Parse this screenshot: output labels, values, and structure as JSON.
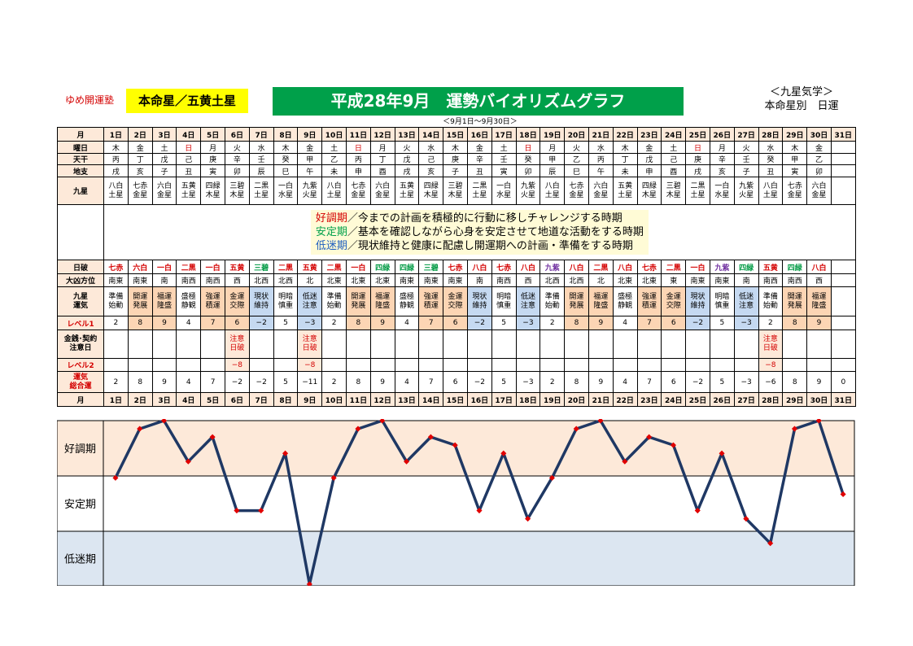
{
  "header": {
    "school": "ゆめ開運塾",
    "honmei": "本命星／五黄土星",
    "title": "平成28年9月　運勢バイオリズムグラフ",
    "kyusei_line1": "＜九星気学＞",
    "kyusei_line2": "本命星別　日運",
    "period": "＜9月1日～9月30日＞"
  },
  "labels": {
    "month": "月",
    "weekday": "曜日",
    "tenkan": "天干",
    "chishi": "地支",
    "kyusei": "九星",
    "nippa": "日破",
    "daikyo": "大凶方位",
    "kyusei_unki": "九星\n運気",
    "level1": "レベル1",
    "kinsen": "金銭･契約\n注意日",
    "level2": "レベル2",
    "sougou": "運気\n総合運"
  },
  "legend": {
    "good_term": "好調期",
    "good_text": "／今までの計画を積極的に行動に移しチャレンジする時期",
    "mid_term": "安定期",
    "mid_text": "／基本を確認しながら心身を安定させて地道な活動をする時期",
    "low_term": "低迷期",
    "low_text": "／現状維持と健康に配慮し開運期への計画・準備をする時期"
  },
  "days": [
    "1日",
    "2日",
    "3日",
    "4日",
    "5日",
    "6日",
    "7日",
    "8日",
    "9日",
    "10日",
    "11日",
    "12日",
    "13日",
    "14日",
    "15日",
    "16日",
    "17日",
    "18日",
    "19日",
    "20日",
    "21日",
    "22日",
    "23日",
    "24日",
    "25日",
    "26日",
    "27日",
    "28日",
    "29日",
    "30日",
    "31日"
  ],
  "weekday": [
    "木",
    "金",
    "土",
    "日",
    "月",
    "火",
    "水",
    "木",
    "金",
    "土",
    "日",
    "月",
    "火",
    "水",
    "木",
    "金",
    "土",
    "日",
    "月",
    "火",
    "水",
    "木",
    "金",
    "土",
    "日",
    "月",
    "火",
    "水",
    "木",
    "金",
    ""
  ],
  "tenkan": [
    "丙",
    "丁",
    "戊",
    "己",
    "庚",
    "辛",
    "壬",
    "癸",
    "甲",
    "乙",
    "丙",
    "丁",
    "戊",
    "己",
    "庚",
    "辛",
    "壬",
    "癸",
    "甲",
    "乙",
    "丙",
    "丁",
    "戊",
    "己",
    "庚",
    "辛",
    "壬",
    "癸",
    "甲",
    "乙",
    ""
  ],
  "chishi": [
    "戌",
    "亥",
    "子",
    "丑",
    "寅",
    "卯",
    "辰",
    "巳",
    "午",
    "未",
    "申",
    "酉",
    "戌",
    "亥",
    "子",
    "丑",
    "寅",
    "卯",
    "辰",
    "巳",
    "午",
    "未",
    "申",
    "酉",
    "戌",
    "亥",
    "子",
    "丑",
    "寅",
    "卯",
    ""
  ],
  "kyusei": [
    "八白\n土星",
    "七赤\n金星",
    "六白\n金星",
    "五黄\n土星",
    "四緑\n木星",
    "三碧\n木星",
    "二黒\n土星",
    "一白\n水星",
    "九紫\n火星",
    "八白\n土星",
    "七赤\n金星",
    "六白\n金星",
    "五黄\n土星",
    "四緑\n木星",
    "三碧\n木星",
    "二黒\n土星",
    "一白\n水星",
    "九紫\n火星",
    "八白\n土星",
    "七赤\n金星",
    "六白\n金星",
    "五黄\n土星",
    "四緑\n木星",
    "三碧\n木星",
    "二黒\n土星",
    "一白\n水星",
    "九紫\n火星",
    "八白\n土星",
    "七赤\n金星",
    "六白\n金星",
    ""
  ],
  "nippa": [
    "七赤",
    "六白",
    "一白",
    "二黒",
    "一白",
    "五黄",
    "三碧",
    "二黒",
    "五黄",
    "二黒",
    "一白",
    "四緑",
    "四緑",
    "三碧",
    "七赤",
    "八白",
    "七赤",
    "八白",
    "九紫",
    "八白",
    "二黒",
    "八白",
    "七赤",
    "二黒",
    "一白",
    "九紫",
    "四緑",
    "五黄",
    "四緑",
    "八白",
    ""
  ],
  "nippa_colors": [
    "#d40000",
    "#d40000",
    "#d40000",
    "#d40000",
    "#d40000",
    "#d40000",
    "#009a44",
    "#d40000",
    "#d40000",
    "#d40000",
    "#d40000",
    "#009a44",
    "#009a44",
    "#009a44",
    "#d40000",
    "#d40000",
    "#d40000",
    "#d40000",
    "#7030a0",
    "#d40000",
    "#d40000",
    "#d40000",
    "#d40000",
    "#d40000",
    "#d40000",
    "#7030a0",
    "#009a44",
    "#d40000",
    "#009a44",
    "#d40000",
    "#000000"
  ],
  "daikyo": [
    "南東",
    "南東",
    "南",
    "南西",
    "南西",
    "西",
    "北西",
    "北西",
    "北",
    "北東",
    "北東",
    "北東",
    "南東",
    "南東",
    "南東",
    "南",
    "南西",
    "西",
    "北西",
    "北西",
    "北",
    "北東",
    "北東",
    "東",
    "南東",
    "南東",
    "南",
    "南西",
    "南西",
    "西",
    ""
  ],
  "kyusei_unki": [
    "準備\n始動",
    "開運\n発展",
    "福運\n隆盛",
    "盛極\n静観",
    "強運\n積運",
    "金運\n交際",
    "現状\n維持",
    "明暗\n慎重",
    "低迷\n注意",
    "準備\n始動",
    "開運\n発展",
    "福運\n隆盛",
    "盛極\n静観",
    "強運\n積運",
    "金運\n交際",
    "現状\n維持",
    "明暗\n慎重",
    "低迷\n注意",
    "準備\n始動",
    "開運\n発展",
    "福運\n隆盛",
    "盛極\n静観",
    "強運\n積運",
    "金運\n交際",
    "現状\n維持",
    "明暗\n慎重",
    "低迷\n注意",
    "準備\n始動",
    "開運\n発展",
    "福運\n隆盛",
    ""
  ],
  "level1": [
    "2",
    "8",
    "9",
    "4",
    "7",
    "6",
    "−2",
    "5",
    "−3",
    "2",
    "8",
    "9",
    "4",
    "7",
    "6",
    "−2",
    "5",
    "−3",
    "2",
    "8",
    "9",
    "4",
    "7",
    "6",
    "−2",
    "5",
    "−3",
    "2",
    "8",
    "9",
    ""
  ],
  "kinsen": [
    "",
    "",
    "",
    "",
    "",
    "注意\n日破",
    "",
    "",
    "注意\n日破",
    "",
    "",
    "",
    "",
    "",
    "",
    "",
    "",
    "",
    "",
    "",
    "",
    "",
    "",
    "",
    "",
    "",
    "",
    "注意\n日破",
    "",
    "",
    ""
  ],
  "level2": [
    "",
    "",
    "",
    "",
    "",
    "−8",
    "",
    "",
    "−8",
    "",
    "",
    "",
    "",
    "",
    "",
    "",
    "",
    "",
    "",
    "",
    "",
    "",
    "",
    "",
    "",
    "",
    "",
    "−8",
    "",
    "",
    ""
  ],
  "sougou": [
    "2",
    "8",
    "9",
    "4",
    "7",
    "−2",
    "−2",
    "5",
    "−11",
    "2",
    "8",
    "9",
    "4",
    "7",
    "6",
    "−2",
    "5",
    "−3",
    "2",
    "8",
    "9",
    "4",
    "7",
    "6",
    "−2",
    "5",
    "−3",
    "−6",
    "8",
    "9",
    "0"
  ],
  "colors": {
    "good_band": "#fde9d9",
    "mid_band": "#ffffff",
    "low_band": "#dce6f1",
    "line": "#1f3864",
    "marker": "#e00000"
  },
  "chart_data": {
    "type": "line",
    "title": "",
    "bands": [
      "好調期",
      "安定期",
      "低迷期"
    ],
    "x": [
      "1日",
      "2日",
      "3日",
      "4日",
      "5日",
      "6日",
      "7日",
      "8日",
      "9日",
      "10日",
      "11日",
      "12日",
      "13日",
      "14日",
      "15日",
      "16日",
      "17日",
      "18日",
      "19日",
      "20日",
      "21日",
      "22日",
      "23日",
      "24日",
      "25日",
      "26日",
      "27日",
      "28日",
      "29日",
      "30日",
      "31日"
    ],
    "series": [
      {
        "values": [
          2,
          8,
          9,
          4,
          7,
          -2,
          -2,
          5,
          -11,
          2,
          8,
          9,
          4,
          7,
          6,
          -2,
          5,
          -3,
          2,
          8,
          9,
          4,
          7,
          6,
          -2,
          5,
          -3,
          -6,
          8,
          9,
          0
        ]
      }
    ],
    "ylim": [
      -11,
      9
    ],
    "band_limits": {
      "good_min": 3,
      "mid_min": -4
    }
  }
}
